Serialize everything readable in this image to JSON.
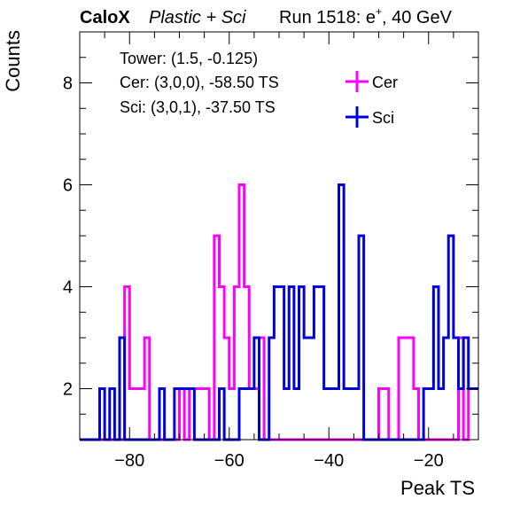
{
  "chart_data": {
    "type": "step-histogram",
    "title": {
      "brand": "CaloX",
      "subtitle": "Plastic + Sci",
      "run": "Run 1518: e",
      "run_sup": "+",
      "energy": ", 40 GeV"
    },
    "xlabel": "Peak TS",
    "ylabel": "Counts",
    "xlim": [
      -90,
      -10
    ],
    "ylim": [
      1,
      9
    ],
    "x_ticks": [
      -80,
      -60,
      -40,
      -20
    ],
    "x_tick_labels": [
      "−80",
      "−60",
      "−40",
      "−20"
    ],
    "y_ticks": [
      2,
      4,
      6,
      8
    ],
    "y_tick_labels": [
      "2",
      "4",
      "6",
      "8"
    ],
    "annotations": [
      "Tower: (1.5, -0.125)",
      "Cer: (3,0,0), -58.50 TS",
      "Sci: (3,0,1), -37.50 TS"
    ],
    "legend": {
      "placement": "top-right"
    },
    "series": [
      {
        "name": "Cer",
        "color": "#ff00ff",
        "bins": [
          [
            -81,
            4
          ],
          [
            -80,
            2
          ],
          [
            -77,
            3
          ],
          [
            -76,
            1
          ],
          [
            -70,
            2
          ],
          [
            -69,
            1
          ],
          [
            -68,
            2
          ],
          [
            -65,
            2
          ],
          [
            -64,
            1
          ],
          [
            -63,
            5
          ],
          [
            -62,
            4
          ],
          [
            -61,
            3
          ],
          [
            -60,
            2
          ],
          [
            -59,
            4
          ],
          [
            -58,
            6
          ],
          [
            -57,
            4
          ],
          [
            -56,
            2
          ],
          [
            -55,
            2
          ],
          [
            -54,
            3
          ],
          [
            -53,
            1
          ],
          [
            -30,
            2
          ],
          [
            -28,
            1
          ],
          [
            -26,
            3
          ],
          [
            -24,
            3
          ],
          [
            -23,
            2
          ],
          [
            -22,
            1
          ],
          [
            -14,
            3
          ],
          [
            -13,
            1
          ],
          [
            -12,
            2
          ]
        ]
      },
      {
        "name": "Sci",
        "color": "#0000dd",
        "bins": [
          [
            -86,
            2
          ],
          [
            -85,
            1
          ],
          [
            -84,
            2
          ],
          [
            -83,
            1
          ],
          [
            -82,
            3
          ],
          [
            -81,
            1
          ],
          [
            -74,
            2
          ],
          [
            -73,
            1
          ],
          [
            -71,
            2
          ],
          [
            -68,
            2
          ],
          [
            -67,
            1
          ],
          [
            -62,
            2
          ],
          [
            -61,
            1
          ],
          [
            -59,
            1
          ],
          [
            -58,
            2
          ],
          [
            -56,
            2
          ],
          [
            -55,
            3
          ],
          [
            -54,
            1
          ],
          [
            -52,
            3
          ],
          [
            -51,
            4
          ],
          [
            -49,
            2
          ],
          [
            -48,
            4
          ],
          [
            -47,
            2
          ],
          [
            -46,
            4
          ],
          [
            -45,
            3
          ],
          [
            -43,
            4
          ],
          [
            -41,
            2
          ],
          [
            -39,
            2
          ],
          [
            -38,
            6
          ],
          [
            -37,
            2
          ],
          [
            -35,
            2
          ],
          [
            -34,
            5
          ],
          [
            -33,
            1
          ],
          [
            -21,
            2
          ],
          [
            -19,
            4
          ],
          [
            -18,
            2
          ],
          [
            -17,
            3
          ],
          [
            -16,
            5
          ],
          [
            -15,
            3
          ],
          [
            -14,
            2
          ],
          [
            -13,
            3
          ],
          [
            -12,
            2
          ]
        ]
      }
    ]
  }
}
